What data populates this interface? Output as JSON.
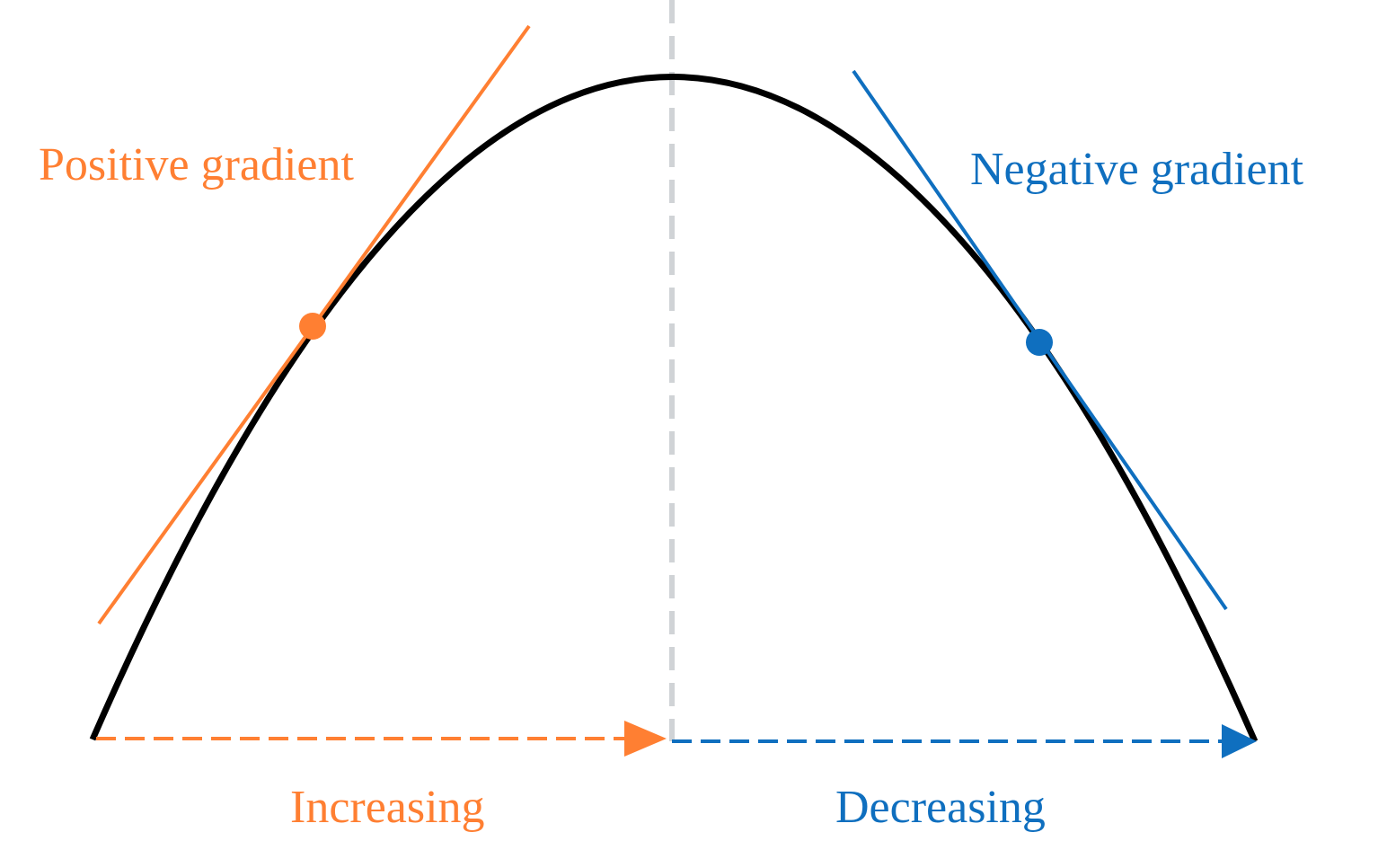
{
  "labels": {
    "positive": "Positive gradient",
    "negative": "Negative gradient",
    "increasing": "Increasing",
    "decreasing": "Decreasing"
  },
  "colors": {
    "orange": "#FF7F32",
    "blue": "#0F6FBF",
    "curve": "#000000",
    "axis": "#D0D3D6"
  }
}
